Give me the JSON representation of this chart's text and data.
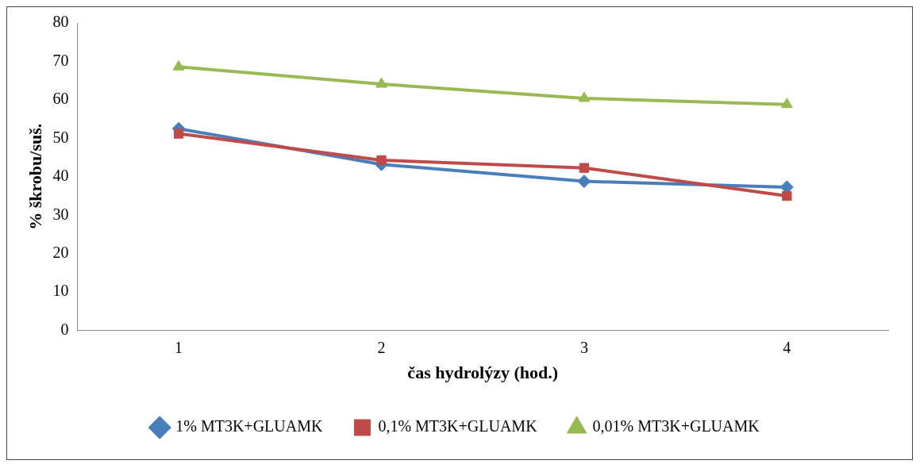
{
  "chart_data": {
    "type": "line",
    "xlabel": "čas hydrolýzy (hod.)",
    "ylabel": "% škrobu/suš.",
    "categories": [
      "1",
      "2",
      "3",
      "4"
    ],
    "series": [
      {
        "name": "1% MT3K+GLUAMK",
        "color": "#4a7ebb",
        "marker": "diamond",
        "values": [
          52.5,
          43.2,
          38.8,
          37.3
        ]
      },
      {
        "name": "0,1% MT3K+GLUAMK",
        "color": "#be4b48",
        "marker": "square",
        "values": [
          51.2,
          44.3,
          42.3,
          35.0
        ]
      },
      {
        "name": "0,01% MT3K+GLUAMK",
        "color": "#98b954",
        "marker": "triangle",
        "values": [
          68.6,
          64.1,
          60.4,
          58.8
        ]
      }
    ],
    "ylim": [
      0,
      80
    ],
    "yticks": [
      0,
      10,
      20,
      30,
      40,
      50,
      60,
      70,
      80
    ],
    "grid": false,
    "legend": "bottom",
    "line_style": "solid"
  }
}
